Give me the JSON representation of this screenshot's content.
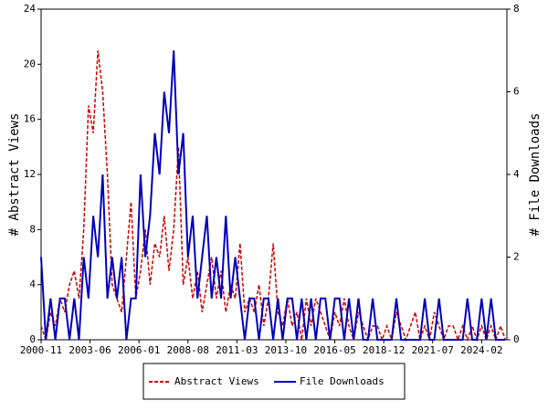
{
  "chart_data": {
    "type": "line",
    "ylabel": "# Abstract Views",
    "y2label": "# File Downloads",
    "x": [
      "2000-11",
      "2001-02",
      "2001-05",
      "2001-08",
      "2001-11",
      "2002-02",
      "2002-05",
      "2002-08",
      "2002-11",
      "2003-02",
      "2003-05",
      "2003-08",
      "2003-11",
      "2004-02",
      "2004-05",
      "2004-08",
      "2004-11",
      "2005-02",
      "2005-05",
      "2005-08",
      "2005-11",
      "2006-02",
      "2006-05",
      "2006-08",
      "2006-11",
      "2007-02",
      "2007-05",
      "2007-08",
      "2007-11",
      "2008-02",
      "2008-05",
      "2008-08",
      "2008-11",
      "2009-02",
      "2009-05",
      "2009-08",
      "2009-11",
      "2010-02",
      "2010-05",
      "2010-08",
      "2010-11",
      "2011-02",
      "2011-05",
      "2011-08",
      "2011-11",
      "2012-02",
      "2012-05",
      "2012-08",
      "2012-11",
      "2013-02",
      "2013-05",
      "2013-08",
      "2013-11",
      "2014-02",
      "2014-05",
      "2014-08",
      "2014-11",
      "2015-02",
      "2015-05",
      "2015-08",
      "2015-11",
      "2016-02",
      "2016-05",
      "2016-08",
      "2016-11",
      "2017-02",
      "2017-05",
      "2017-08",
      "2017-11",
      "2018-02",
      "2018-05",
      "2018-08",
      "2018-11",
      "2019-02",
      "2019-05",
      "2019-08",
      "2019-11",
      "2020-02",
      "2020-05",
      "2020-08",
      "2020-11",
      "2021-02",
      "2021-05",
      "2021-08",
      "2021-11",
      "2022-02",
      "2022-05",
      "2022-08",
      "2022-11",
      "2023-02",
      "2023-05",
      "2023-08",
      "2023-11",
      "2024-02",
      "2024-05",
      "2024-08",
      "2024-11",
      "2025-02",
      "2025-05"
    ],
    "series": [
      {
        "name": "Abstract Views",
        "color": "#cc0000",
        "dashed": true,
        "values": [
          1,
          0,
          2,
          1,
          3,
          2,
          4,
          5,
          3,
          8,
          17,
          15,
          21,
          18,
          12,
          4,
          3,
          2,
          6,
          10,
          3,
          5,
          8,
          4,
          7,
          6,
          9,
          5,
          8,
          14,
          4,
          6,
          3,
          5,
          2,
          4,
          6,
          3,
          5,
          2,
          4,
          3,
          7,
          2,
          3,
          2,
          4,
          1,
          3,
          7,
          2,
          1,
          3,
          1,
          2,
          0,
          3,
          1,
          3,
          2,
          1,
          0,
          2,
          1,
          3,
          1,
          0,
          2,
          1,
          0,
          1,
          1,
          0,
          1,
          0,
          2,
          1,
          0,
          1,
          2,
          0,
          1,
          0,
          2,
          1,
          0,
          1,
          1,
          0,
          1,
          0,
          1,
          0,
          1,
          0,
          1,
          0,
          1,
          0
        ]
      },
      {
        "name": "File Downloads",
        "color": "#0000bb",
        "axis": "y2",
        "values": [
          2,
          0,
          1,
          0,
          1,
          1,
          0,
          1,
          0,
          2,
          1,
          3,
          2,
          4,
          1,
          2,
          1,
          2,
          0,
          1,
          1,
          4,
          2,
          3,
          5,
          4,
          6,
          5,
          7,
          4,
          5,
          2,
          3,
          1,
          2,
          3,
          1,
          2,
          1,
          3,
          1,
          2,
          1,
          0,
          1,
          1,
          0,
          1,
          1,
          0,
          1,
          0,
          1,
          1,
          0,
          1,
          0,
          1,
          0,
          1,
          1,
          0,
          1,
          1,
          0,
          1,
          0,
          1,
          0,
          0,
          1,
          0,
          0,
          0,
          0,
          1,
          0,
          0,
          0,
          0,
          0,
          1,
          0,
          0,
          1,
          0,
          0,
          0,
          0,
          0,
          1,
          0,
          0,
          1,
          0,
          1,
          0,
          0,
          0
        ]
      }
    ],
    "xlim": [
      "2000-11",
      "2025-06"
    ],
    "xticks": [
      "2000-11",
      "2003-06",
      "2006-01",
      "2008-08",
      "2011-03",
      "2013-10",
      "2016-05",
      "2018-12",
      "2021-07",
      "2024-02"
    ],
    "ylim": [
      0,
      24
    ],
    "yticks": [
      0,
      4,
      8,
      12,
      16,
      20,
      24
    ],
    "y2lim": [
      0,
      8
    ],
    "y2ticks": [
      0,
      2,
      4,
      6,
      8
    ],
    "legend": "bottom"
  }
}
